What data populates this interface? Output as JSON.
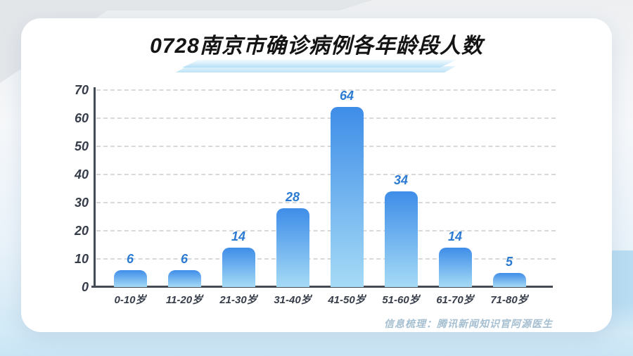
{
  "title": "0728南京市确诊病例各年龄段人数",
  "credit": "信息梳理：腾讯新闻知识官阿源医生",
  "colors": {
    "bar_top": "#3E8DE8",
    "bar_bottom": "#A6DBF6",
    "value_label": "#2C7BD2",
    "axis": "#454b54",
    "tick_label": "#363d49",
    "gridline": "#d7dadd",
    "title_highlight": "#b5dff6",
    "credit_text": "#a5bfd1",
    "card_background": "#ffffff",
    "page_background_bottom": "#c9e5f5"
  },
  "chart_data": {
    "type": "bar",
    "title": "0728南京市确诊病例各年龄段人数",
    "categories": [
      "0-10岁",
      "11-20岁",
      "21-30岁",
      "31-40岁",
      "41-50岁",
      "51-60岁",
      "61-70岁",
      "71-80岁"
    ],
    "values": [
      6,
      6,
      14,
      28,
      64,
      34,
      14,
      5
    ],
    "xlabel": "",
    "ylabel": "",
    "ylim": [
      0,
      70
    ],
    "yticks": [
      0,
      10,
      20,
      30,
      40,
      50,
      60,
      70
    ],
    "grid": "horizontal-dashed",
    "legend": "none",
    "data_labels": "above-bars"
  }
}
